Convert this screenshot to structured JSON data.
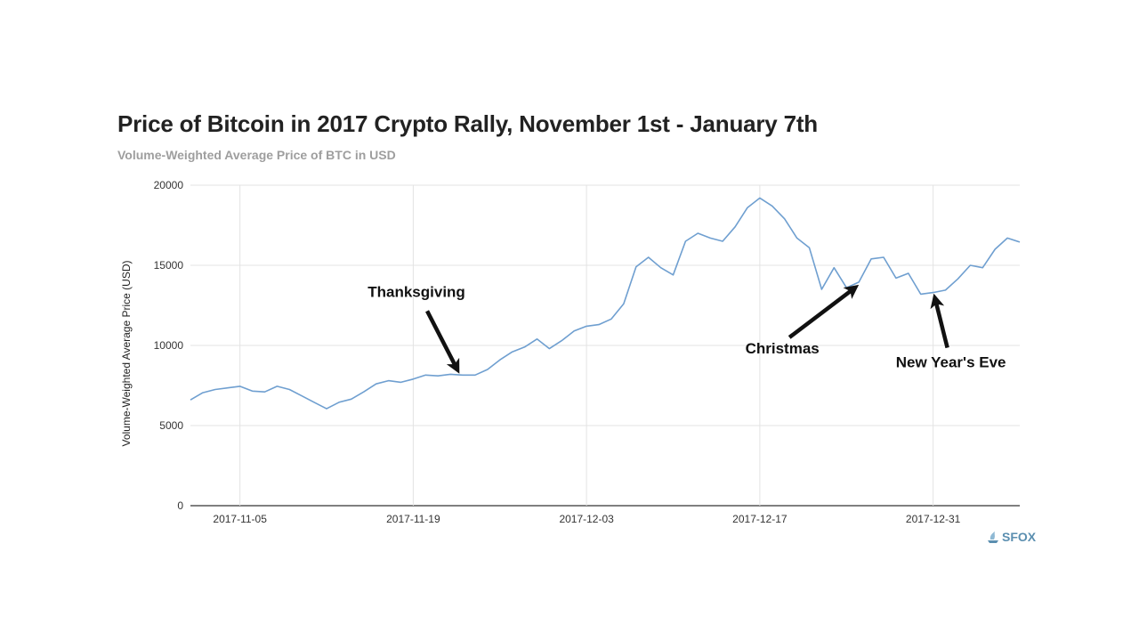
{
  "chart_data": {
    "type": "line",
    "title": "Price of Bitcoin in 2017 Crypto Rally, November 1st - January 7th",
    "subtitle": "Volume-Weighted Average Price of BTC in USD",
    "xlabel": "",
    "ylabel": "Volume-Weighted Average Price (USD)",
    "ylim": [
      0,
      20000
    ],
    "yticks": [
      0,
      5000,
      10000,
      15000,
      20000
    ],
    "xlim": [
      "2017-11-01",
      "2018-01-07"
    ],
    "xticks": [
      "2017-11-05",
      "2017-11-19",
      "2017-12-03",
      "2017-12-17",
      "2017-12-31"
    ],
    "grid": true,
    "line_color": "#6f9fd0",
    "series": [
      {
        "x": [
          "2017-11-01",
          "2017-11-02",
          "2017-11-03",
          "2017-11-04",
          "2017-11-05",
          "2017-11-06",
          "2017-11-07",
          "2017-11-08",
          "2017-11-09",
          "2017-11-10",
          "2017-11-11",
          "2017-11-12",
          "2017-11-13",
          "2017-11-14",
          "2017-11-15",
          "2017-11-16",
          "2017-11-17",
          "2017-11-18",
          "2017-11-19",
          "2017-11-20",
          "2017-11-21",
          "2017-11-22",
          "2017-11-23",
          "2017-11-24",
          "2017-11-25",
          "2017-11-26",
          "2017-11-27",
          "2017-11-28",
          "2017-11-29",
          "2017-11-30",
          "2017-12-01",
          "2017-12-02",
          "2017-12-03",
          "2017-12-04",
          "2017-12-05",
          "2017-12-06",
          "2017-12-07",
          "2017-12-08",
          "2017-12-09",
          "2017-12-10",
          "2017-12-11",
          "2017-12-12",
          "2017-12-13",
          "2017-12-14",
          "2017-12-15",
          "2017-12-16",
          "2017-12-17",
          "2017-12-18",
          "2017-12-19",
          "2017-12-20",
          "2017-12-21",
          "2017-12-22",
          "2017-12-23",
          "2017-12-24",
          "2017-12-25",
          "2017-12-26",
          "2017-12-27",
          "2017-12-28",
          "2017-12-29",
          "2017-12-30",
          "2017-12-31",
          "2018-01-01",
          "2018-01-02",
          "2018-01-03",
          "2018-01-04",
          "2018-01-05",
          "2018-01-06",
          "2018-01-07"
        ],
        "values": [
          6600,
          7050,
          7250,
          7350,
          7450,
          7150,
          7100,
          7450,
          7250,
          6850,
          6450,
          6050,
          6450,
          6650,
          7100,
          7600,
          7800,
          7700,
          7900,
          8150,
          8100,
          8200,
          8150,
          8150,
          8500,
          9100,
          9600,
          9900,
          10400,
          9800,
          10300,
          10900,
          11200,
          11300,
          11650,
          12600,
          14900,
          15500,
          14850,
          14400,
          16500,
          17000,
          16700,
          16500,
          17400,
          18600,
          19200,
          18700,
          17900,
          16700,
          16100,
          13500,
          14850,
          13600,
          13950,
          15400,
          15500,
          14200,
          14500,
          13200,
          13300,
          13450,
          14150,
          15000,
          14850,
          16000,
          16700,
          16450
        ]
      }
    ],
    "annotations": [
      {
        "text": "Thanksgiving",
        "x": "2017-11-23",
        "y": 8150
      },
      {
        "text": "Christmas",
        "x": "2017-12-25",
        "y": 13950
      },
      {
        "text": "New Year's Eve",
        "x": "2017-12-31",
        "y": 13300
      }
    ]
  },
  "logo": {
    "text": "SFOX",
    "icon": "sfox-logo-icon",
    "color": "#5b8fb0"
  }
}
